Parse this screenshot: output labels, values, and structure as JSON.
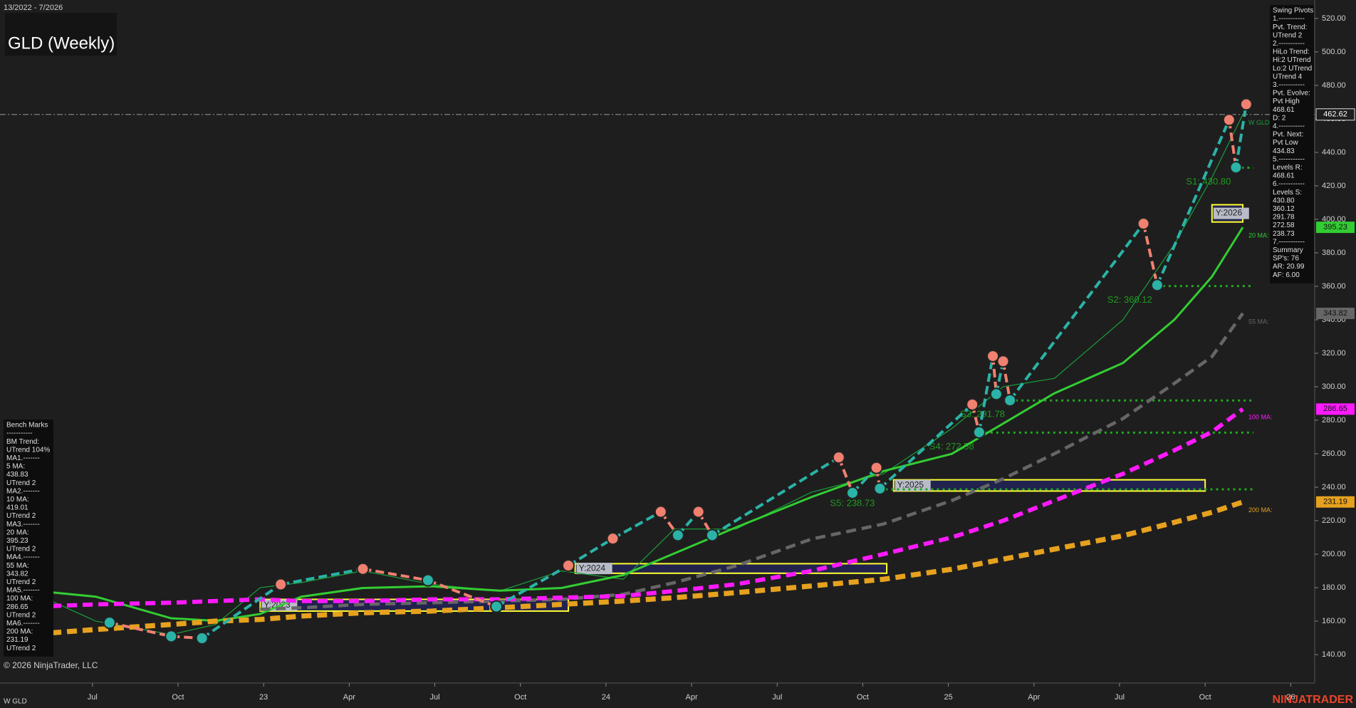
{
  "chart_data": {
    "type": "line",
    "title": "GLD (Weekly)",
    "subtitle": "13/2022 - 7/2026",
    "instrument": "W GLD",
    "copyright": "© 2026 NinjaTrader, LLC",
    "brand": "NINJATRADER",
    "xlim": [
      2022.23,
      2026.07
    ],
    "xticks": [
      {
        "value": 2022.5,
        "label": "Jul"
      },
      {
        "value": 2022.75,
        "label": "Oct"
      },
      {
        "value": 2023.0,
        "label": "23"
      },
      {
        "value": 2023.25,
        "label": "Apr"
      },
      {
        "value": 2023.5,
        "label": "Jul"
      },
      {
        "value": 2023.75,
        "label": "Oct"
      },
      {
        "value": 2024.0,
        "label": "24"
      },
      {
        "value": 2024.25,
        "label": "Apr"
      },
      {
        "value": 2024.5,
        "label": "Jul"
      },
      {
        "value": 2024.75,
        "label": "Oct"
      },
      {
        "value": 2025.0,
        "label": "25"
      },
      {
        "value": 2025.25,
        "label": "Apr"
      },
      {
        "value": 2025.5,
        "label": "Jul"
      },
      {
        "value": 2025.75,
        "label": "Oct"
      },
      {
        "value": 2026.0,
        "label": "26"
      }
    ],
    "ylim": [
      123,
      531
    ],
    "yticks": [
      {
        "value": 140,
        "label": "140.00"
      },
      {
        "value": 160,
        "label": "160.00"
      },
      {
        "value": 180,
        "label": "180.00"
      },
      {
        "value": 200,
        "label": "200.00"
      },
      {
        "value": 220,
        "label": "220.00"
      },
      {
        "value": 240,
        "label": "240.00"
      },
      {
        "value": 260,
        "label": "260.00"
      },
      {
        "value": 280,
        "label": "280.00"
      },
      {
        "value": 300,
        "label": "300.00"
      },
      {
        "value": 320,
        "label": "320.00"
      },
      {
        "value": 340,
        "label": "340.00"
      },
      {
        "value": 360,
        "label": "360.00"
      },
      {
        "value": 380,
        "label": "380.00"
      },
      {
        "value": 400,
        "label": "400.00"
      },
      {
        "value": 420,
        "label": "420.00"
      },
      {
        "value": 440,
        "label": "440.00"
      },
      {
        "value": 460,
        "label": "460.00"
      },
      {
        "value": 480,
        "label": "480.00"
      },
      {
        "value": 500,
        "label": "500.00"
      },
      {
        "value": 520,
        "label": "520.00"
      }
    ],
    "x": [
      2022.38,
      2022.51,
      2022.73,
      2022.86,
      2022.99,
      2023.11,
      2023.29,
      2023.49,
      2023.69,
      2023.87,
      2024.05,
      2024.2,
      2024.38,
      2024.6,
      2024.81,
      2025.01,
      2025.16,
      2025.31,
      2025.51,
      2025.66,
      2025.77,
      2025.86
    ],
    "series": [
      {
        "name": "W GLD",
        "color": "#1a9f3a",
        "style": "thin",
        "values": [
          172,
          160,
          152,
          158,
          180,
          183,
          190,
          182,
          178,
          190,
          185,
          215,
          215,
          237,
          248,
          275,
          300,
          305,
          340,
          385,
          425,
          462.62
        ]
      },
      {
        "name": "20 MA:",
        "color": "#33cc33",
        "style": "solid",
        "values": [
          177.2,
          174.6,
          161.7,
          160.2,
          164.3,
          174.6,
          179.8,
          180.8,
          178.2,
          179.8,
          187.5,
          200.5,
          216.0,
          234.1,
          249.6,
          259.9,
          278.0,
          296.1,
          314.2,
          340.0,
          365.8,
          395.23
        ]
      },
      {
        "name": "55 MA:",
        "color": "#666666",
        "style": "dash",
        "values": [
          null,
          null,
          null,
          null,
          167,
          168,
          170,
          171,
          172,
          173,
          176,
          183,
          193,
          209,
          218,
          232,
          245,
          260,
          281,
          302,
          318,
          343.82
        ]
      },
      {
        "name": "100 MA:",
        "color": "#ff1aff",
        "style": "dash",
        "values": [
          169,
          170,
          171,
          172,
          173,
          172,
          172,
          173,
          173,
          174,
          175,
          178,
          182,
          190,
          200,
          210,
          220,
          232,
          248,
          262,
          273,
          286.65
        ]
      },
      {
        "name": "200 MA:",
        "color": "#e6a11e",
        "style": "dash",
        "values": [
          153,
          155,
          158,
          160,
          161,
          163,
          165,
          166,
          168,
          170,
          172,
          174,
          177,
          181,
          185,
          191,
          197,
          203,
          211,
          219,
          225,
          231.19
        ]
      }
    ],
    "pivots": {
      "x": [
        2022.55,
        2022.73,
        2022.82,
        2023.05,
        2023.29,
        2023.48,
        2023.68,
        2023.89,
        2024.02,
        2024.16,
        2024.21,
        2024.27,
        2024.31,
        2024.68,
        2024.72,
        2024.79,
        2024.8,
        2025.07,
        2025.09,
        2025.13,
        2025.14,
        2025.16,
        2025.18,
        2025.57,
        2025.61,
        2025.82,
        2025.84,
        2025.87
      ],
      "values": [
        159.1,
        150.9,
        149.8,
        181.9,
        191.2,
        184.4,
        168.7,
        193.2,
        209.3,
        225.3,
        211.3,
        225.3,
        211.3,
        257.8,
        236.6,
        251.6,
        239.2,
        289.4,
        272.8,
        318.3,
        295.6,
        315.2,
        291.9,
        397.4,
        360.7,
        459.4,
        431.0,
        468.7
      ],
      "up_color": "#2ab3a6",
      "down_color": "#f08070"
    },
    "levels": [
      {
        "label": "S1: 430.80",
        "value": 430.8,
        "x": 2025.84
      },
      {
        "label": "S2: 360.12",
        "value": 360.12,
        "x": 2025.61
      },
      {
        "label": "S3: 291.78",
        "value": 291.78,
        "x": 2025.18
      },
      {
        "label": "S4: 272.58",
        "value": 272.58,
        "x": 2025.09
      },
      {
        "label": "S5: 238.73",
        "value": 238.73,
        "x": 2024.8
      }
    ],
    "year_boxes": [
      {
        "label": "Y:2023",
        "x": [
          2022.99,
          2023.89
        ],
        "y": [
          166,
          173
        ]
      },
      {
        "label": "Y:2024",
        "x": [
          2023.91,
          2024.82
        ],
        "y": [
          188.6,
          194.3
        ]
      },
      {
        "label": "Y:2025",
        "x": [
          2024.84,
          2025.75
        ],
        "y": [
          237.7,
          244.4
        ]
      },
      {
        "label": "Y:2026",
        "x": [
          2025.77,
          2025.86
        ],
        "y": [
          398.4,
          408.7
        ]
      }
    ],
    "swing_panel": [
      "Swing Pivots",
      "1.-----------",
      "Pvt. Trend:",
      "UTrend 2",
      "2.-----------",
      "HiLo Trend:",
      "Hi:2 UTrend",
      "Lo:2 UTrend",
      "UTrend 4",
      "3.-----------",
      "Pvt. Evolve:",
      "Pvt High",
      "468.61",
      "D: 2",
      "4.-----------",
      "Pvt. Next:",
      "Pvt Low",
      "434.83",
      "5.-----------",
      "Levels R:",
      "468.61",
      "6.-----------",
      "Levels S:",
      "430.80",
      "360.12",
      "291.78",
      "272.58",
      "238.73",
      "7.-----------",
      "Summary",
      "SP's: 76",
      "AR: 20.99",
      "AF: 6.00"
    ],
    "bench_panel": [
      "Bench Marks",
      "-----------",
      "BM Trend:",
      "UTrend 104%",
      "MA1.-------",
      "5 MA:",
      "438.83",
      "UTrend 2",
      "MA2.-------",
      "10 MA:",
      "419.01",
      "UTrend 2",
      "MA3.-------",
      "20 MA:",
      "395.23",
      "UTrend 2",
      "MA4.-------",
      "55 MA:",
      "343.82",
      "UTrend 2",
      "MA5.-------",
      "100 MA:",
      "286.65",
      "UTrend 2",
      "MA6.-------",
      "200 MA:",
      "231.19",
      "UTrend 2"
    ]
  }
}
